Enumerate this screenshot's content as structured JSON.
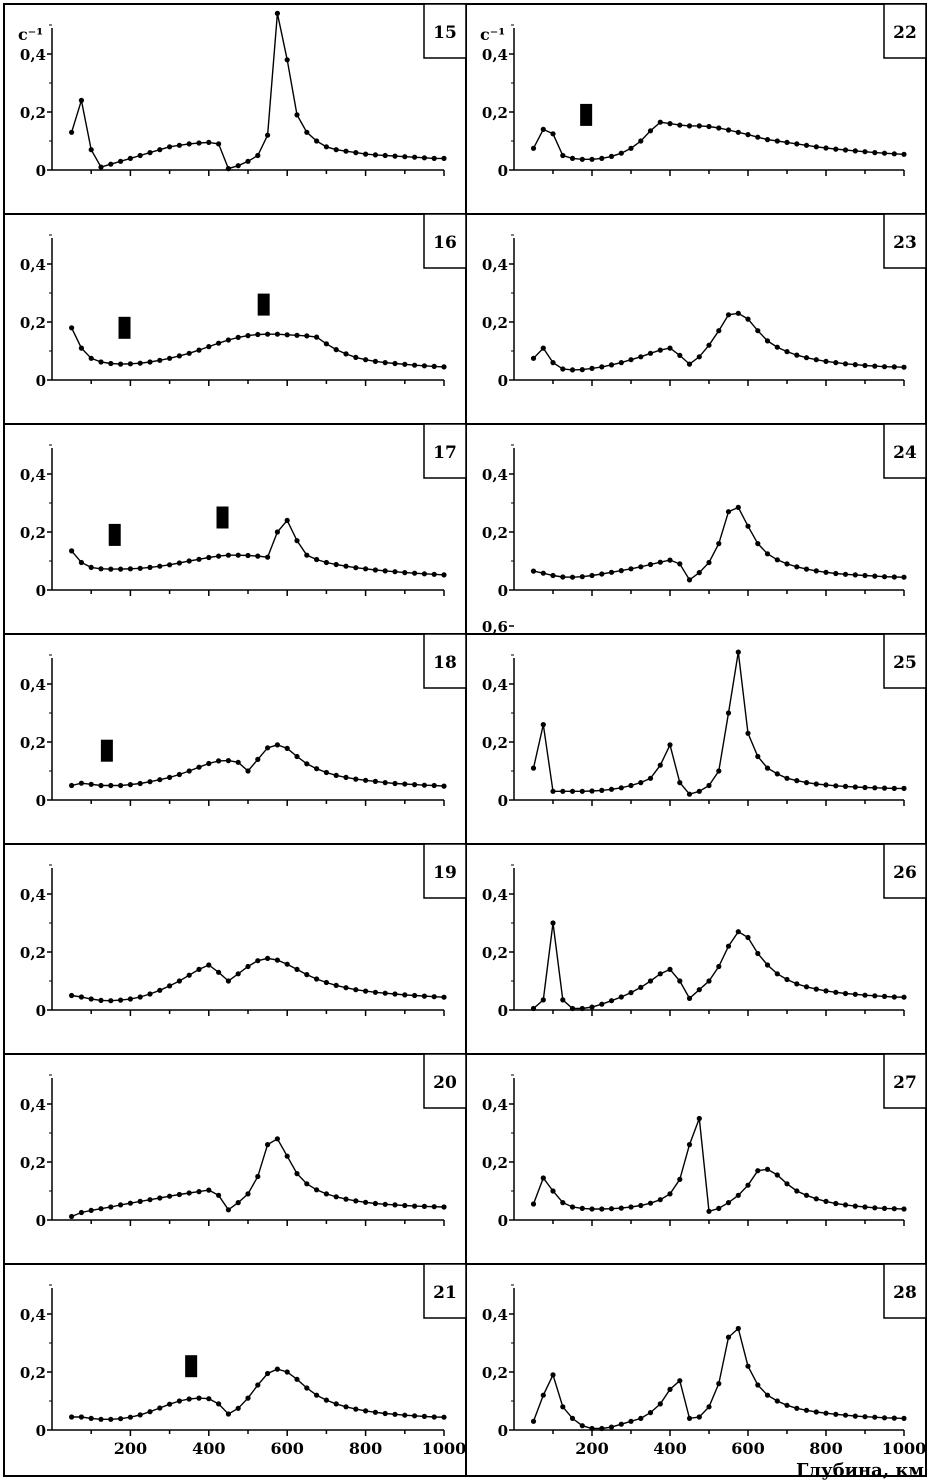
{
  "chart_data": [
    {
      "type": "line",
      "panel_label": "15",
      "ylabel": "c⁻¹",
      "ylim": [
        0,
        0.5
      ],
      "yticks": [
        "0",
        "0,2",
        "0,4"
      ],
      "x": [
        50,
        75,
        100,
        125,
        150,
        175,
        200,
        225,
        250,
        275,
        300,
        325,
        350,
        375,
        400,
        425,
        450,
        475,
        500,
        525,
        550,
        575,
        600,
        625,
        650,
        675,
        700,
        725,
        750,
        775,
        800,
        825,
        850,
        875,
        900,
        925,
        950,
        975,
        1000
      ],
      "values": [
        0.13,
        0.24,
        0.07,
        0.01,
        0.02,
        0.03,
        0.04,
        0.05,
        0.06,
        0.07,
        0.08,
        0.085,
        0.09,
        0.093,
        0.095,
        0.09,
        0.005,
        0.015,
        0.03,
        0.05,
        0.12,
        0.54,
        0.38,
        0.19,
        0.13,
        0.1,
        0.08,
        0.07,
        0.065,
        0.06,
        0.055,
        0.052,
        0.05,
        0.048,
        0.046,
        0.044,
        0.042,
        0.04,
        0.04
      ],
      "markers": []
    },
    {
      "type": "line",
      "panel_label": "16",
      "ylim": [
        0,
        0.5
      ],
      "yticks": [
        "0",
        "0,2",
        "0,4"
      ],
      "x": [
        50,
        75,
        100,
        125,
        150,
        175,
        200,
        225,
        250,
        275,
        300,
        325,
        350,
        375,
        400,
        425,
        450,
        475,
        500,
        525,
        550,
        575,
        600,
        625,
        650,
        675,
        700,
        725,
        750,
        775,
        800,
        825,
        850,
        875,
        900,
        925,
        950,
        975,
        1000
      ],
      "values": [
        0.18,
        0.11,
        0.075,
        0.062,
        0.057,
        0.055,
        0.056,
        0.058,
        0.062,
        0.068,
        0.075,
        0.083,
        0.092,
        0.103,
        0.115,
        0.127,
        0.138,
        0.147,
        0.153,
        0.157,
        0.158,
        0.158,
        0.156,
        0.154,
        0.152,
        0.148,
        0.125,
        0.105,
        0.09,
        0.078,
        0.07,
        0.064,
        0.06,
        0.057,
        0.054,
        0.051,
        0.049,
        0.047,
        0.045
      ],
      "markers": [
        {
          "x": 185,
          "y": 0.18
        },
        {
          "x": 540,
          "y": 0.26
        }
      ]
    },
    {
      "type": "line",
      "panel_label": "17",
      "ylim": [
        0,
        0.5
      ],
      "yticks": [
        "0",
        "0,2",
        "0,4"
      ],
      "x": [
        50,
        75,
        100,
        125,
        150,
        175,
        200,
        225,
        250,
        275,
        300,
        325,
        350,
        375,
        400,
        425,
        450,
        475,
        500,
        525,
        550,
        575,
        600,
        625,
        650,
        675,
        700,
        725,
        750,
        775,
        800,
        825,
        850,
        875,
        900,
        925,
        950,
        975,
        1000
      ],
      "values": [
        0.135,
        0.095,
        0.078,
        0.073,
        0.072,
        0.072,
        0.073,
        0.075,
        0.078,
        0.082,
        0.087,
        0.093,
        0.1,
        0.106,
        0.112,
        0.117,
        0.12,
        0.12,
        0.119,
        0.117,
        0.113,
        0.2,
        0.24,
        0.17,
        0.12,
        0.105,
        0.095,
        0.088,
        0.082,
        0.077,
        0.073,
        0.069,
        0.066,
        0.063,
        0.06,
        0.058,
        0.056,
        0.054,
        0.052
      ],
      "markers": [
        {
          "x": 160,
          "y": 0.19
        },
        {
          "x": 435,
          "y": 0.25
        }
      ]
    },
    {
      "type": "line",
      "panel_label": "18",
      "ylim": [
        0,
        0.5
      ],
      "yticks": [
        "0",
        "0,2",
        "0,4"
      ],
      "x": [
        50,
        75,
        100,
        125,
        150,
        175,
        200,
        225,
        250,
        275,
        300,
        325,
        350,
        375,
        400,
        425,
        450,
        475,
        500,
        525,
        550,
        575,
        600,
        625,
        650,
        675,
        700,
        725,
        750,
        775,
        800,
        825,
        850,
        875,
        900,
        925,
        950,
        975,
        1000
      ],
      "values": [
        0.05,
        0.058,
        0.054,
        0.05,
        0.05,
        0.05,
        0.053,
        0.057,
        0.063,
        0.07,
        0.078,
        0.088,
        0.1,
        0.113,
        0.126,
        0.135,
        0.136,
        0.13,
        0.1,
        0.14,
        0.18,
        0.19,
        0.178,
        0.15,
        0.125,
        0.108,
        0.095,
        0.085,
        0.078,
        0.072,
        0.068,
        0.064,
        0.06,
        0.057,
        0.055,
        0.053,
        0.051,
        0.05,
        0.048
      ],
      "markers": [
        {
          "x": 140,
          "y": 0.17
        }
      ]
    },
    {
      "type": "line",
      "panel_label": "19",
      "ylim": [
        0,
        0.5
      ],
      "yticks": [
        "0",
        "0,2",
        "0,4"
      ],
      "x": [
        50,
        75,
        100,
        125,
        150,
        175,
        200,
        225,
        250,
        275,
        300,
        325,
        350,
        375,
        400,
        425,
        450,
        475,
        500,
        525,
        550,
        575,
        600,
        625,
        650,
        675,
        700,
        725,
        750,
        775,
        800,
        825,
        850,
        875,
        900,
        925,
        950,
        975,
        1000
      ],
      "values": [
        0.05,
        0.045,
        0.038,
        0.033,
        0.032,
        0.034,
        0.038,
        0.045,
        0.055,
        0.068,
        0.083,
        0.1,
        0.12,
        0.14,
        0.155,
        0.13,
        0.1,
        0.125,
        0.15,
        0.17,
        0.178,
        0.172,
        0.158,
        0.14,
        0.122,
        0.107,
        0.095,
        0.085,
        0.077,
        0.07,
        0.065,
        0.061,
        0.058,
        0.055,
        0.052,
        0.05,
        0.048,
        0.046,
        0.044
      ],
      "markers": []
    },
    {
      "type": "line",
      "panel_label": "20",
      "ylim": [
        0,
        0.5
      ],
      "yticks": [
        "0",
        "0,2",
        "0,4"
      ],
      "x": [
        50,
        75,
        100,
        125,
        150,
        175,
        200,
        225,
        250,
        275,
        300,
        325,
        350,
        375,
        400,
        425,
        450,
        475,
        500,
        525,
        550,
        575,
        600,
        625,
        650,
        675,
        700,
        725,
        750,
        775,
        800,
        825,
        850,
        875,
        900,
        925,
        950,
        975,
        1000
      ],
      "values": [
        0.012,
        0.026,
        0.033,
        0.039,
        0.045,
        0.052,
        0.058,
        0.064,
        0.07,
        0.076,
        0.082,
        0.088,
        0.093,
        0.098,
        0.103,
        0.085,
        0.035,
        0.06,
        0.09,
        0.15,
        0.26,
        0.28,
        0.22,
        0.16,
        0.125,
        0.104,
        0.09,
        0.08,
        0.072,
        0.066,
        0.061,
        0.057,
        0.054,
        0.052,
        0.05,
        0.048,
        0.047,
        0.046,
        0.045
      ],
      "markers": []
    },
    {
      "type": "line",
      "panel_label": "21",
      "ylim": [
        0,
        0.5
      ],
      "yticks": [
        "0",
        "0,2",
        "0,4"
      ],
      "x": [
        50,
        75,
        100,
        125,
        150,
        175,
        200,
        225,
        250,
        275,
        300,
        325,
        350,
        375,
        400,
        425,
        450,
        475,
        500,
        525,
        550,
        575,
        600,
        625,
        650,
        675,
        700,
        725,
        750,
        775,
        800,
        825,
        850,
        875,
        900,
        925,
        950,
        975,
        1000
      ],
      "values": [
        0.045,
        0.045,
        0.04,
        0.037,
        0.037,
        0.039,
        0.044,
        0.052,
        0.063,
        0.076,
        0.089,
        0.1,
        0.107,
        0.11,
        0.108,
        0.09,
        0.055,
        0.075,
        0.11,
        0.155,
        0.195,
        0.21,
        0.2,
        0.175,
        0.145,
        0.12,
        0.103,
        0.09,
        0.08,
        0.072,
        0.066,
        0.061,
        0.057,
        0.054,
        0.051,
        0.049,
        0.047,
        0.045,
        0.044
      ],
      "markers": [
        {
          "x": 355,
          "y": 0.22
        }
      ]
    },
    {
      "type": "line",
      "panel_label": "22",
      "ylabel": "c⁻¹",
      "ylim": [
        0,
        0.5
      ],
      "yticks": [
        "0",
        "0,2",
        "0,4"
      ],
      "x": [
        50,
        75,
        100,
        125,
        150,
        175,
        200,
        225,
        250,
        275,
        300,
        325,
        350,
        375,
        400,
        425,
        450,
        475,
        500,
        525,
        550,
        575,
        600,
        625,
        650,
        675,
        700,
        725,
        750,
        775,
        800,
        825,
        850,
        875,
        900,
        925,
        950,
        975,
        1000
      ],
      "values": [
        0.075,
        0.14,
        0.125,
        0.05,
        0.04,
        0.037,
        0.037,
        0.04,
        0.047,
        0.058,
        0.075,
        0.1,
        0.135,
        0.165,
        0.16,
        0.155,
        0.152,
        0.152,
        0.15,
        0.145,
        0.138,
        0.13,
        0.122,
        0.113,
        0.105,
        0.1,
        0.095,
        0.09,
        0.085,
        0.08,
        0.076,
        0.072,
        0.069,
        0.066,
        0.063,
        0.06,
        0.058,
        0.056,
        0.054
      ],
      "markers": [
        {
          "x": 185,
          "y": 0.19
        }
      ]
    },
    {
      "type": "line",
      "panel_label": "23",
      "ylim": [
        0,
        0.5
      ],
      "yticks": [
        "0",
        "0,2",
        "0,4"
      ],
      "x": [
        50,
        75,
        100,
        125,
        150,
        175,
        200,
        225,
        250,
        275,
        300,
        325,
        350,
        375,
        400,
        425,
        450,
        475,
        500,
        525,
        550,
        575,
        600,
        625,
        650,
        675,
        700,
        725,
        750,
        775,
        800,
        825,
        850,
        875,
        900,
        925,
        950,
        975,
        1000
      ],
      "values": [
        0.075,
        0.11,
        0.06,
        0.038,
        0.035,
        0.036,
        0.04,
        0.045,
        0.052,
        0.06,
        0.07,
        0.08,
        0.092,
        0.103,
        0.11,
        0.085,
        0.055,
        0.08,
        0.12,
        0.17,
        0.225,
        0.23,
        0.21,
        0.17,
        0.135,
        0.113,
        0.098,
        0.086,
        0.077,
        0.07,
        0.064,
        0.06,
        0.056,
        0.053,
        0.05,
        0.048,
        0.046,
        0.045,
        0.044
      ],
      "markers": []
    },
    {
      "type": "line",
      "panel_label": "24",
      "ylim": [
        0,
        0.5
      ],
      "yticks": [
        "0",
        "0,2",
        "0,4"
      ],
      "x": [
        50,
        75,
        100,
        125,
        150,
        175,
        200,
        225,
        250,
        275,
        300,
        325,
        350,
        375,
        400,
        425,
        450,
        475,
        500,
        525,
        550,
        575,
        600,
        625,
        650,
        675,
        700,
        725,
        750,
        775,
        800,
        825,
        850,
        875,
        900,
        925,
        950,
        975,
        1000
      ],
      "values": [
        0.065,
        0.058,
        0.05,
        0.045,
        0.044,
        0.046,
        0.05,
        0.055,
        0.061,
        0.067,
        0.073,
        0.08,
        0.088,
        0.096,
        0.103,
        0.09,
        0.035,
        0.06,
        0.095,
        0.16,
        0.27,
        0.285,
        0.22,
        0.16,
        0.125,
        0.104,
        0.09,
        0.08,
        0.072,
        0.066,
        0.061,
        0.057,
        0.054,
        0.052,
        0.05,
        0.048,
        0.046,
        0.045,
        0.044
      ],
      "markers": []
    },
    {
      "type": "line",
      "panel_label": "25",
      "ylim": [
        0,
        0.6
      ],
      "yticks": [
        "0",
        "0,2",
        "0,4",
        "0,6"
      ],
      "x": [
        50,
        75,
        100,
        125,
        150,
        175,
        200,
        225,
        250,
        275,
        300,
        325,
        350,
        375,
        400,
        425,
        450,
        475,
        500,
        525,
        550,
        575,
        600,
        625,
        650,
        675,
        700,
        725,
        750,
        775,
        800,
        825,
        850,
        875,
        900,
        925,
        950,
        975,
        1000
      ],
      "values": [
        0.11,
        0.26,
        0.03,
        0.03,
        0.03,
        0.03,
        0.031,
        0.033,
        0.037,
        0.042,
        0.05,
        0.06,
        0.075,
        0.12,
        0.19,
        0.06,
        0.02,
        0.03,
        0.05,
        0.1,
        0.3,
        0.51,
        0.23,
        0.15,
        0.11,
        0.09,
        0.075,
        0.067,
        0.06,
        0.055,
        0.052,
        0.049,
        0.047,
        0.045,
        0.043,
        0.042,
        0.041,
        0.04,
        0.04
      ],
      "markers": []
    },
    {
      "type": "line",
      "panel_label": "26",
      "ylim": [
        0,
        0.5
      ],
      "yticks": [
        "0",
        "0,2",
        "0,4"
      ],
      "x": [
        50,
        75,
        100,
        125,
        150,
        175,
        200,
        225,
        250,
        275,
        300,
        325,
        350,
        375,
        400,
        425,
        450,
        475,
        500,
        525,
        550,
        575,
        600,
        625,
        650,
        675,
        700,
        725,
        750,
        775,
        800,
        825,
        850,
        875,
        900,
        925,
        950,
        975,
        1000
      ],
      "values": [
        0.005,
        0.035,
        0.3,
        0.035,
        0.005,
        0.005,
        0.01,
        0.02,
        0.032,
        0.045,
        0.06,
        0.078,
        0.1,
        0.125,
        0.14,
        0.1,
        0.04,
        0.07,
        0.1,
        0.15,
        0.22,
        0.27,
        0.25,
        0.195,
        0.155,
        0.125,
        0.105,
        0.09,
        0.08,
        0.072,
        0.066,
        0.061,
        0.057,
        0.054,
        0.051,
        0.049,
        0.047,
        0.045,
        0.044
      ],
      "markers": []
    },
    {
      "type": "line",
      "panel_label": "27",
      "ylim": [
        0,
        0.5
      ],
      "yticks": [
        "0",
        "0,2",
        "0,4"
      ],
      "x": [
        50,
        75,
        100,
        125,
        150,
        175,
        200,
        225,
        250,
        275,
        300,
        325,
        350,
        375,
        400,
        425,
        450,
        475,
        500,
        525,
        550,
        575,
        600,
        625,
        650,
        675,
        700,
        725,
        750,
        775,
        800,
        825,
        850,
        875,
        900,
        925,
        950,
        975,
        1000
      ],
      "values": [
        0.055,
        0.145,
        0.1,
        0.06,
        0.045,
        0.04,
        0.038,
        0.038,
        0.039,
        0.041,
        0.045,
        0.05,
        0.058,
        0.07,
        0.09,
        0.14,
        0.26,
        0.35,
        0.03,
        0.04,
        0.06,
        0.085,
        0.12,
        0.17,
        0.175,
        0.155,
        0.125,
        0.1,
        0.085,
        0.073,
        0.064,
        0.057,
        0.052,
        0.048,
        0.045,
        0.042,
        0.04,
        0.039,
        0.038
      ],
      "markers": []
    },
    {
      "type": "line",
      "panel_label": "28",
      "ylim": [
        0,
        0.5
      ],
      "yticks": [
        "0",
        "0,2",
        "0,4"
      ],
      "x": [
        50,
        75,
        100,
        125,
        150,
        175,
        200,
        225,
        250,
        275,
        300,
        325,
        350,
        375,
        400,
        425,
        450,
        475,
        500,
        525,
        550,
        575,
        600,
        625,
        650,
        675,
        700,
        725,
        750,
        775,
        800,
        825,
        850,
        875,
        900,
        925,
        950,
        975,
        1000
      ],
      "values": [
        0.03,
        0.12,
        0.19,
        0.08,
        0.04,
        0.015,
        0.005,
        0.005,
        0.01,
        0.02,
        0.03,
        0.04,
        0.06,
        0.09,
        0.14,
        0.17,
        0.04,
        0.045,
        0.08,
        0.16,
        0.32,
        0.35,
        0.22,
        0.155,
        0.12,
        0.1,
        0.085,
        0.075,
        0.068,
        0.062,
        0.058,
        0.054,
        0.051,
        0.048,
        0.046,
        0.044,
        0.042,
        0.041,
        0.04
      ],
      "markers": []
    }
  ],
  "axis": {
    "xticks": [
      "200",
      "400",
      "600",
      "800",
      "1000"
    ],
    "xlabel": "Глубина, км"
  }
}
